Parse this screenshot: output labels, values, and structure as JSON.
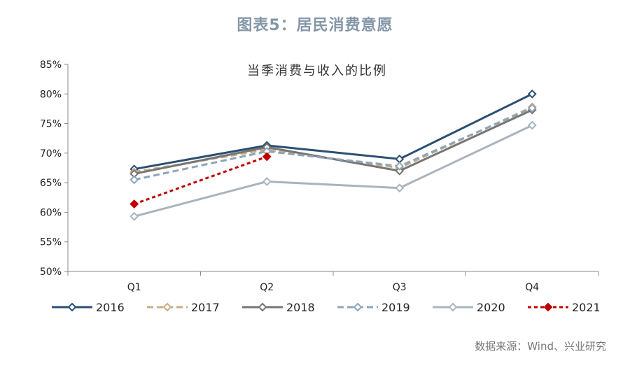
{
  "figure": {
    "title": "图表5：居民消费意愿",
    "source": "数据来源：Wind、兴业研究"
  },
  "chart_data": {
    "type": "line",
    "title": "当季消费与收入的比例",
    "xlabel": "",
    "ylabel": "",
    "categories": [
      "Q1",
      "Q2",
      "Q3",
      "Q4"
    ],
    "ylim": [
      50,
      85
    ],
    "yticks": [
      50,
      55,
      60,
      65,
      70,
      75,
      80,
      85
    ],
    "yticklabels": [
      "50%",
      "55%",
      "60%",
      "65%",
      "70%",
      "75%",
      "80%",
      "85%"
    ],
    "legend_position": "bottom",
    "grid": false,
    "series": [
      {
        "name": "2016",
        "values": [
          67.3,
          71.3,
          69.0,
          80.0
        ],
        "color": "#2b4f72",
        "dash": "solid"
      },
      {
        "name": "2017",
        "values": [
          66.8,
          70.6,
          67.5,
          77.8
        ],
        "color": "#c9ad84",
        "dash": "dashed"
      },
      {
        "name": "2018",
        "values": [
          66.5,
          71.0,
          67.0,
          77.3
        ],
        "color": "#767676",
        "dash": "solid"
      },
      {
        "name": "2019",
        "values": [
          65.5,
          70.3,
          67.8,
          77.6
        ],
        "color": "#8ea5b8",
        "dash": "dashed"
      },
      {
        "name": "2020",
        "values": [
          59.3,
          65.2,
          64.1,
          74.7
        ],
        "color": "#a9b4bc",
        "dash": "solid"
      },
      {
        "name": "2021",
        "values": [
          61.4,
          69.4,
          null,
          null
        ],
        "color": "#c00000",
        "dash": "dotted"
      }
    ]
  }
}
